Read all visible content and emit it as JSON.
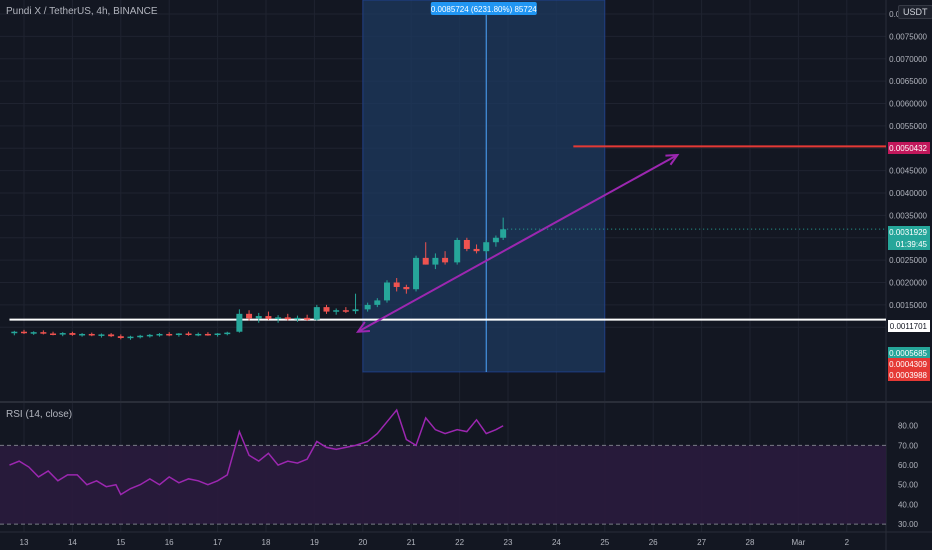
{
  "header": {
    "symbol": "Pundi X / TetherUS, 4h, BINANCE",
    "currency": "USDT"
  },
  "rsi_panel": {
    "title": "RSI (14, close)"
  },
  "measure_label": "0.0085724 (6231.80%) 85724",
  "price_scale": {
    "ticks": [
      "0.0080000",
      "0.0075000",
      "0.0070000",
      "0.0065000",
      "0.0060000",
      "0.0055000",
      "0.0050000",
      "0.0045000",
      "0.0040000",
      "0.0035000",
      "0.0030000",
      "0.0025000",
      "0.0020000",
      "0.0015000",
      "0.0010000"
    ],
    "badges": [
      {
        "value": "0.0050432",
        "color": "#c2185b",
        "text_color": "#ffffff"
      },
      {
        "value": "0.0031929",
        "color": "#26a69a",
        "text_color": "#ffffff"
      },
      {
        "value": "01:39:45",
        "color": "#26a69a",
        "text_color": "#ffffff"
      },
      {
        "value": "0.0011701",
        "color": "#ffffff",
        "text_color": "#131722"
      },
      {
        "value": "0.0005685",
        "color": "#26a69a",
        "text_color": "#ffffff"
      },
      {
        "value": "0.0004309",
        "color": "#e53935",
        "text_color": "#ffffff"
      },
      {
        "value": "0.0003988",
        "color": "#e53935",
        "text_color": "#ffffff"
      }
    ]
  },
  "rsi_scale": {
    "ticks": [
      "80.00",
      "70.00",
      "60.00",
      "50.00",
      "40.00",
      "30.00"
    ]
  },
  "time_axis": {
    "labels": [
      "13",
      "14",
      "15",
      "16",
      "17",
      "18",
      "19",
      "20",
      "21",
      "22",
      "23",
      "24",
      "25",
      "26",
      "27",
      "28",
      "Mar",
      "2"
    ]
  },
  "colors": {
    "background": "#131722",
    "up": "#26a69a",
    "down": "#ef5350",
    "grid": "#1f2330",
    "measure_box": "#1e3a5f",
    "measure_border": "#2962ff",
    "target_line": "#e53935",
    "support_line": "#ffffff",
    "arrow": "#9c27b0",
    "rsi_line": "#9c27b0",
    "rsi_band": "#2a1b3d"
  },
  "chart_data": [
    {
      "type": "candlestick",
      "title": "Pundi X / TetherUS, 4h, BINANCE",
      "xlabel": "",
      "ylabel": "",
      "ylim": [
        0.0,
        0.0082
      ],
      "x_range": [
        12.7,
        2.7
      ],
      "candles": [
        {
          "x": 12.8,
          "o": 0.00088,
          "h": 0.00092,
          "l": 0.00082,
          "c": 0.0009
        },
        {
          "x": 13.0,
          "o": 0.0009,
          "h": 0.00094,
          "l": 0.00085,
          "c": 0.00087
        },
        {
          "x": 13.2,
          "o": 0.00087,
          "h": 0.00091,
          "l": 0.00083,
          "c": 0.00089
        },
        {
          "x": 13.4,
          "o": 0.00089,
          "h": 0.00093,
          "l": 0.00084,
          "c": 0.00086
        },
        {
          "x": 13.6,
          "o": 0.00086,
          "h": 0.0009,
          "l": 0.00082,
          "c": 0.00085
        },
        {
          "x": 13.8,
          "o": 0.00085,
          "h": 0.00089,
          "l": 0.0008,
          "c": 0.00087
        },
        {
          "x": 14.0,
          "o": 0.00087,
          "h": 0.0009,
          "l": 0.00081,
          "c": 0.00083
        },
        {
          "x": 14.2,
          "o": 0.00083,
          "h": 0.00087,
          "l": 0.00079,
          "c": 0.00085
        },
        {
          "x": 14.4,
          "o": 0.00085,
          "h": 0.00088,
          "l": 0.0008,
          "c": 0.00082
        },
        {
          "x": 14.6,
          "o": 0.00082,
          "h": 0.00086,
          "l": 0.00077,
          "c": 0.00084
        },
        {
          "x": 14.8,
          "o": 0.00084,
          "h": 0.00087,
          "l": 0.00078,
          "c": 0.0008
        },
        {
          "x": 15.0,
          "o": 0.0008,
          "h": 0.00084,
          "l": 0.00073,
          "c": 0.00076
        },
        {
          "x": 15.2,
          "o": 0.00076,
          "h": 0.00081,
          "l": 0.00072,
          "c": 0.00079
        },
        {
          "x": 15.4,
          "o": 0.00079,
          "h": 0.00083,
          "l": 0.00075,
          "c": 0.00081
        },
        {
          "x": 15.6,
          "o": 0.00081,
          "h": 0.00085,
          "l": 0.00077,
          "c": 0.00083
        },
        {
          "x": 15.8,
          "o": 0.00083,
          "h": 0.00087,
          "l": 0.00079,
          "c": 0.00085
        },
        {
          "x": 16.0,
          "o": 0.00085,
          "h": 0.00089,
          "l": 0.0008,
          "c": 0.00083
        },
        {
          "x": 16.2,
          "o": 0.00083,
          "h": 0.00087,
          "l": 0.00079,
          "c": 0.00086
        },
        {
          "x": 16.4,
          "o": 0.00086,
          "h": 0.0009,
          "l": 0.00081,
          "c": 0.00084
        },
        {
          "x": 16.6,
          "o": 0.00084,
          "h": 0.00088,
          "l": 0.0008,
          "c": 0.00085
        },
        {
          "x": 16.8,
          "o": 0.00085,
          "h": 0.00089,
          "l": 0.00081,
          "c": 0.00083
        },
        {
          "x": 17.0,
          "o": 0.00083,
          "h": 0.00087,
          "l": 0.00079,
          "c": 0.00086
        },
        {
          "x": 17.2,
          "o": 0.00086,
          "h": 0.0009,
          "l": 0.00082,
          "c": 0.00088
        },
        {
          "x": 17.45,
          "o": 0.0009,
          "h": 0.0014,
          "l": 0.00088,
          "c": 0.0013
        },
        {
          "x": 17.65,
          "o": 0.0013,
          "h": 0.00138,
          "l": 0.00115,
          "c": 0.0012
        },
        {
          "x": 17.85,
          "o": 0.0012,
          "h": 0.00132,
          "l": 0.0011,
          "c": 0.00125
        },
        {
          "x": 18.05,
          "o": 0.00125,
          "h": 0.00135,
          "l": 0.00116,
          "c": 0.00119
        },
        {
          "x": 18.25,
          "o": 0.00119,
          "h": 0.00127,
          "l": 0.0011,
          "c": 0.00122
        },
        {
          "x": 18.45,
          "o": 0.00122,
          "h": 0.0013,
          "l": 0.00115,
          "c": 0.00118
        },
        {
          "x": 18.65,
          "o": 0.00118,
          "h": 0.00126,
          "l": 0.00112,
          "c": 0.00121
        },
        {
          "x": 18.85,
          "o": 0.00121,
          "h": 0.00128,
          "l": 0.00114,
          "c": 0.00117
        },
        {
          "x": 19.05,
          "o": 0.00117,
          "h": 0.0015,
          "l": 0.00115,
          "c": 0.00145
        },
        {
          "x": 19.25,
          "o": 0.00145,
          "h": 0.0015,
          "l": 0.0013,
          "c": 0.00135
        },
        {
          "x": 19.45,
          "o": 0.00135,
          "h": 0.00142,
          "l": 0.00128,
          "c": 0.00138
        },
        {
          "x": 19.65,
          "o": 0.00138,
          "h": 0.00145,
          "l": 0.00132,
          "c": 0.00136
        },
        {
          "x": 19.85,
          "o": 0.00136,
          "h": 0.00175,
          "l": 0.0013,
          "c": 0.0014
        },
        {
          "x": 20.1,
          "o": 0.0014,
          "h": 0.00155,
          "l": 0.00135,
          "c": 0.0015
        },
        {
          "x": 20.3,
          "o": 0.0015,
          "h": 0.00165,
          "l": 0.00145,
          "c": 0.0016
        },
        {
          "x": 20.5,
          "o": 0.0016,
          "h": 0.00205,
          "l": 0.00155,
          "c": 0.002
        },
        {
          "x": 20.7,
          "o": 0.002,
          "h": 0.0021,
          "l": 0.0018,
          "c": 0.0019
        },
        {
          "x": 20.9,
          "o": 0.0019,
          "h": 0.00195,
          "l": 0.00175,
          "c": 0.00185
        },
        {
          "x": 21.1,
          "o": 0.00185,
          "h": 0.0026,
          "l": 0.0018,
          "c": 0.00255
        },
        {
          "x": 21.3,
          "o": 0.00255,
          "h": 0.0029,
          "l": 0.0024,
          "c": 0.0024
        },
        {
          "x": 21.5,
          "o": 0.0024,
          "h": 0.00265,
          "l": 0.0023,
          "c": 0.00255
        },
        {
          "x": 21.7,
          "o": 0.00255,
          "h": 0.0027,
          "l": 0.0024,
          "c": 0.00245
        },
        {
          "x": 21.95,
          "o": 0.00245,
          "h": 0.003,
          "l": 0.0024,
          "c": 0.00295
        },
        {
          "x": 22.15,
          "o": 0.00295,
          "h": 0.003,
          "l": 0.0027,
          "c": 0.00275
        },
        {
          "x": 22.35,
          "o": 0.00275,
          "h": 0.00285,
          "l": 0.00265,
          "c": 0.0027
        },
        {
          "x": 22.55,
          "o": 0.0027,
          "h": 0.00295,
          "l": 0.00265,
          "c": 0.0029
        },
        {
          "x": 22.75,
          "o": 0.0029,
          "h": 0.00305,
          "l": 0.0028,
          "c": 0.003
        },
        {
          "x": 22.9,
          "o": 0.003,
          "h": 0.00345,
          "l": 0.00295,
          "c": 0.00319
        }
      ],
      "horizontal_lines": [
        {
          "y": 0.0050432,
          "x_start": 24.35,
          "color": "#e53935"
        },
        {
          "y": 0.0011701,
          "x_start": 12.7,
          "color": "#ffffff"
        }
      ],
      "measure_range": {
        "x_start": 20.0,
        "x_end": 25.0,
        "y_low": 0.0,
        "y_high": 0.0082
      },
      "trend_arrow": {
        "x1": 19.9,
        "y1": 0.0009,
        "x2": 26.5,
        "y2": 0.00485
      }
    },
    {
      "type": "line",
      "title": "RSI (14, close)",
      "xlabel": "",
      "ylabel": "",
      "ylim": [
        28,
        88
      ],
      "bands": [
        30,
        70
      ],
      "x": [
        12.7,
        12.9,
        13.1,
        13.3,
        13.5,
        13.7,
        13.9,
        14.1,
        14.3,
        14.5,
        14.7,
        14.9,
        15.0,
        15.2,
        15.4,
        15.6,
        15.8,
        16.0,
        16.2,
        16.4,
        16.6,
        16.8,
        17.0,
        17.2,
        17.45,
        17.65,
        17.85,
        18.05,
        18.25,
        18.45,
        18.65,
        18.85,
        19.05,
        19.25,
        19.45,
        19.65,
        19.85,
        20.1,
        20.3,
        20.5,
        20.7,
        20.9,
        21.1,
        21.3,
        21.5,
        21.7,
        21.95,
        22.15,
        22.35,
        22.55,
        22.75,
        22.9
      ],
      "values": [
        60,
        62,
        59,
        54,
        57,
        52,
        55,
        55,
        50,
        52,
        49,
        50,
        45,
        48,
        50,
        53,
        50,
        54,
        51,
        53,
        52,
        50,
        52,
        55,
        77,
        65,
        62,
        66,
        60,
        62,
        61,
        63,
        72,
        69,
        68,
        69,
        70,
        72,
        76,
        82,
        88,
        73,
        70,
        84,
        78,
        76,
        78,
        77,
        83,
        76,
        78,
        80
      ]
    }
  ]
}
